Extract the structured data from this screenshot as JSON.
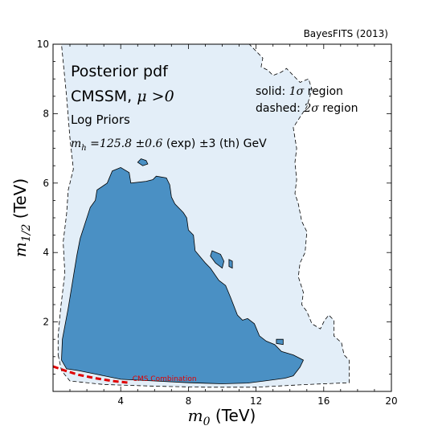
{
  "chart_data": {
    "type": "area",
    "credit": "BayesFITS (2013)",
    "annotations": {
      "title": "Posterior pdf",
      "model_prefix": "CMSSM, ",
      "model_condition": "μ >0",
      "priors": "Log Priors",
      "higgs_prefix": "m",
      "higgs_sub": "h",
      "higgs_value": " =125.8 ±0.6",
      "higgs_suffix": " (exp)  ±3 (th) GeV"
    },
    "legend": {
      "solid_prefix": "solid: ",
      "solid_sigma": "1σ",
      "solid_suffix": " region",
      "dashed_prefix": "dashed: ",
      "dashed_sigma": "2σ",
      "dashed_suffix": " region"
    },
    "xlabel": {
      "symbol": "m",
      "sub": "0",
      "unit": " (TeV)"
    },
    "ylabel": {
      "symbol": "m",
      "sub": "1/2",
      "unit": " (TeV)"
    },
    "xlim": [
      0,
      20
    ],
    "ylim": [
      0,
      10
    ],
    "xticks": [
      4,
      8,
      12,
      16,
      20
    ],
    "yticks": [
      2,
      4,
      6,
      8,
      10
    ],
    "grid": false,
    "legend_placement": "top-right",
    "colors": {
      "region_1sigma": "#4a90c4",
      "region_2sigma": "#e3eef8",
      "cms_limit": "#e00000"
    },
    "series": [
      {
        "name": "1σ region",
        "style": "solid",
        "points": [
          [
            0.5,
            0.9
          ],
          [
            0.8,
            0.65
          ],
          [
            1.5,
            0.6
          ],
          [
            2.5,
            0.5
          ],
          [
            4,
            0.35
          ],
          [
            6,
            0.3
          ],
          [
            8,
            0.25
          ],
          [
            10,
            0.22
          ],
          [
            11.5,
            0.24
          ],
          [
            12.5,
            0.3
          ],
          [
            13.7,
            0.38
          ],
          [
            14.2,
            0.45
          ],
          [
            14.6,
            0.7
          ],
          [
            14.8,
            0.9
          ],
          [
            14.2,
            1.05
          ],
          [
            13.5,
            1.15
          ],
          [
            13.1,
            1.35
          ],
          [
            12.6,
            1.45
          ],
          [
            12.2,
            1.6
          ],
          [
            11.9,
            1.95
          ],
          [
            11.5,
            2.1
          ],
          [
            11.2,
            2.05
          ],
          [
            10.9,
            2.2
          ],
          [
            10.5,
            2.7
          ],
          [
            10.2,
            3.05
          ],
          [
            9.8,
            3.2
          ],
          [
            9.3,
            3.55
          ],
          [
            9.0,
            3.7
          ],
          [
            8.4,
            4.05
          ],
          [
            8.3,
            4.5
          ],
          [
            8.0,
            4.65
          ],
          [
            7.9,
            5.0
          ],
          [
            7.7,
            5.15
          ],
          [
            7.2,
            5.4
          ],
          [
            7.0,
            5.6
          ],
          [
            6.9,
            5.95
          ],
          [
            6.7,
            6.15
          ],
          [
            6.1,
            6.2
          ],
          [
            5.9,
            6.1
          ],
          [
            5.5,
            6.05
          ],
          [
            4.6,
            6.0
          ],
          [
            4.5,
            6.3
          ],
          [
            4.0,
            6.45
          ],
          [
            3.5,
            6.35
          ],
          [
            3.2,
            6.0
          ],
          [
            2.6,
            5.8
          ],
          [
            2.5,
            5.5
          ],
          [
            2.2,
            5.3
          ],
          [
            1.6,
            4.4
          ],
          [
            1.4,
            3.9
          ],
          [
            0.9,
            2.4
          ],
          [
            0.55,
            1.5
          ],
          [
            0.5,
            0.9
          ]
        ]
      },
      {
        "name": "2σ region",
        "style": "dashed",
        "points": [
          [
            0.3,
            1.05
          ],
          [
            0.5,
            0.6
          ],
          [
            1,
            0.3
          ],
          [
            3,
            0.2
          ],
          [
            6,
            0.15
          ],
          [
            9,
            0.12
          ],
          [
            12,
            0.12
          ],
          [
            15,
            0.2
          ],
          [
            17.5,
            0.25
          ],
          [
            17.5,
            0.9
          ],
          [
            17.2,
            1.05
          ],
          [
            17.05,
            1.4
          ],
          [
            16.6,
            1.6
          ],
          [
            16.6,
            2.05
          ],
          [
            16.3,
            2.2
          ],
          [
            16.05,
            2.05
          ],
          [
            15.8,
            1.8
          ],
          [
            15.3,
            1.95
          ],
          [
            15.0,
            2.3
          ],
          [
            14.7,
            2.5
          ],
          [
            14.8,
            2.85
          ],
          [
            14.5,
            3.3
          ],
          [
            14.6,
            3.7
          ],
          [
            14.9,
            4.0
          ],
          [
            15.0,
            4.6
          ],
          [
            14.7,
            4.9
          ],
          [
            14.5,
            5.4
          ],
          [
            14.3,
            5.7
          ],
          [
            14.4,
            6.1
          ],
          [
            14.3,
            6.6
          ],
          [
            14.4,
            7.0
          ],
          [
            14.2,
            7.6
          ],
          [
            14.6,
            7.9
          ],
          [
            15.0,
            8.2
          ],
          [
            15.3,
            8.7
          ],
          [
            15.1,
            9.0
          ],
          [
            14.6,
            8.9
          ],
          [
            14.2,
            9.1
          ],
          [
            13.8,
            9.3
          ],
          [
            13.5,
            9.2
          ],
          [
            13.0,
            9.1
          ],
          [
            12.7,
            9.25
          ],
          [
            12.3,
            9.35
          ],
          [
            12.4,
            9.6
          ],
          [
            12.0,
            9.8
          ],
          [
            11.6,
            10.0
          ],
          [
            0.5,
            10.0
          ],
          [
            0.6,
            9.5
          ],
          [
            0.8,
            8.5
          ],
          [
            1.0,
            7.3
          ],
          [
            1.2,
            6.4
          ],
          [
            0.9,
            5.8
          ],
          [
            0.8,
            5.1
          ],
          [
            0.6,
            4.3
          ],
          [
            0.7,
            3.4
          ],
          [
            0.45,
            2.4
          ],
          [
            0.3,
            1.6
          ],
          [
            0.3,
            1.05
          ]
        ]
      },
      {
        "name": "1σ island",
        "style": "solid",
        "points": [
          [
            5.0,
            6.6
          ],
          [
            5.2,
            6.7
          ],
          [
            5.5,
            6.65
          ],
          [
            5.6,
            6.55
          ],
          [
            5.3,
            6.5
          ],
          [
            5.0,
            6.6
          ]
        ]
      },
      {
        "name": "1σ island",
        "style": "solid",
        "points": [
          [
            9.4,
            4.05
          ],
          [
            9.9,
            3.95
          ],
          [
            10.1,
            3.75
          ],
          [
            10.0,
            3.55
          ],
          [
            9.6,
            3.7
          ],
          [
            9.3,
            3.9
          ],
          [
            9.4,
            4.05
          ]
        ]
      },
      {
        "name": "1σ island",
        "style": "solid",
        "points": [
          [
            10.4,
            3.8
          ],
          [
            10.6,
            3.75
          ],
          [
            10.6,
            3.55
          ],
          [
            10.4,
            3.6
          ],
          [
            10.4,
            3.8
          ]
        ]
      },
      {
        "name": "1σ island",
        "style": "solid",
        "points": [
          [
            13.2,
            1.5
          ],
          [
            13.6,
            1.5
          ],
          [
            13.6,
            1.35
          ],
          [
            13.2,
            1.38
          ],
          [
            13.2,
            1.5
          ]
        ]
      },
      {
        "name": "CMS Combination",
        "style": "dashed-red",
        "points": [
          [
            0,
            0.72
          ],
          [
            0.7,
            0.6
          ],
          [
            1.5,
            0.48
          ],
          [
            2.5,
            0.38
          ],
          [
            3.5,
            0.3
          ],
          [
            4.5,
            0.25
          ]
        ]
      }
    ]
  }
}
